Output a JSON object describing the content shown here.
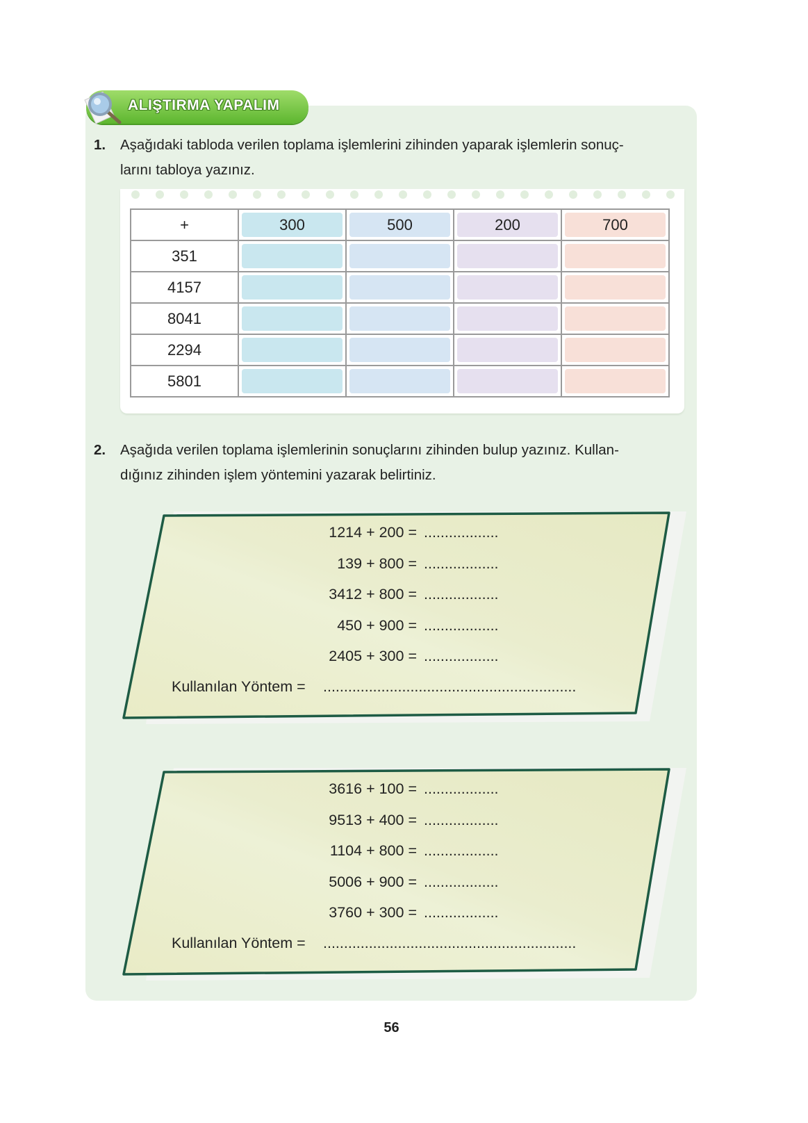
{
  "banner": {
    "title": "ALIŞTIRMA YAPALIM",
    "icon": "magnifier-icon"
  },
  "q1": {
    "number": "1.",
    "text": "Aşağıdaki tabloda verilen toplama işlemlerini zihinden yaparak işlemlerin sonuç-ları tabloya yazınız.",
    "line1": "Aşağıdaki tabloda verilen toplama işlemlerini zihinden yaparak işlemlerin sonuç-",
    "line2": "larını tabloya yazınız."
  },
  "table": {
    "corner": "+",
    "columns": [
      "300",
      "500",
      "200",
      "700"
    ],
    "rows": [
      "351",
      "4157",
      "8041",
      "2294",
      "5801"
    ],
    "colors": [
      "#c9e7ef",
      "#d6e5f3",
      "#e6e0ef",
      "#f8e0d8"
    ]
  },
  "q2": {
    "number": "2.",
    "line1": "Aşağıda verilen toplama işlemlerinin sonuçlarını zihinden bulup yazınız. Kullan-",
    "line2": "dığınız zihinden işlem yöntemini yazarak belirtiniz."
  },
  "notes": [
    {
      "equations": [
        "1214 + 200 =",
        "139 + 800 =",
        "3412 + 800 =",
        "450 + 900 =",
        "2405 + 300 ="
      ],
      "blank": "..................",
      "method_label": "Kullanılan Yöntem =",
      "method_blank": "............................................................."
    },
    {
      "equations": [
        "3616 + 100 =",
        "9513 + 400 =",
        "1104 + 800 =",
        "5006 + 900 =",
        "3760 + 300 ="
      ],
      "blank": "..................",
      "method_label": "Kullanılan Yöntem =",
      "method_blank": "............................................................."
    }
  ],
  "page_number": "56"
}
